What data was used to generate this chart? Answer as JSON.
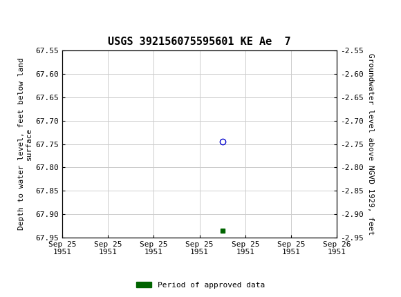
{
  "title": "USGS 392156075595601 KE Ae  7",
  "xlabel_dates": [
    "Sep 25\n1951",
    "Sep 25\n1951",
    "Sep 25\n1951",
    "Sep 25\n1951",
    "Sep 25\n1951",
    "Sep 25\n1951",
    "Sep 26\n1951"
  ],
  "ylabel_left": "Depth to water level, feet below land\nsurface",
  "ylabel_right": "Groundwater level above NGVD 1929, feet",
  "ylim_left": [
    67.55,
    67.95
  ],
  "ylim_right": [
    -2.55,
    -2.95
  ],
  "yticks_left": [
    67.55,
    67.6,
    67.65,
    67.7,
    67.75,
    67.8,
    67.85,
    67.9,
    67.95
  ],
  "yticks_right": [
    -2.55,
    -2.6,
    -2.65,
    -2.7,
    -2.75,
    -2.8,
    -2.85,
    -2.9,
    -2.95
  ],
  "data_point_x": 3.5,
  "data_point_y": 67.745,
  "data_point_color": "#0000cc",
  "data_point_marker": "o",
  "approved_point_x": 3.5,
  "approved_point_y": 67.935,
  "approved_point_color": "#006400",
  "approved_point_marker": "s",
  "grid_color": "#cccccc",
  "background_color": "#ffffff",
  "header_color": "#1a6e3d",
  "xlim": [
    0,
    6
  ],
  "legend_label": "Period of approved data",
  "legend_color": "#006400",
  "title_fontsize": 11,
  "axis_fontsize": 8,
  "tick_fontsize": 8,
  "mono_font": "DejaVu Sans Mono"
}
